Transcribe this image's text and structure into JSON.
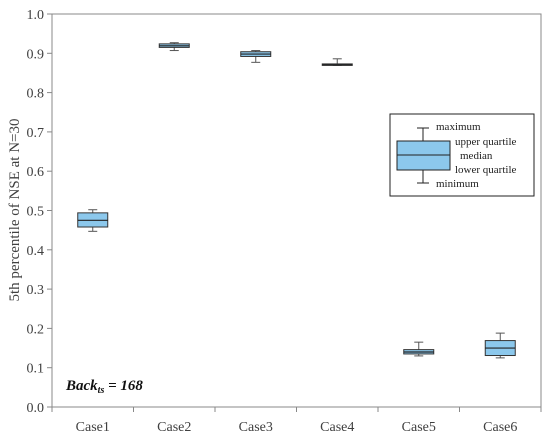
{
  "chart_data": {
    "type": "boxplot",
    "ylabel": "5th percentile of NSE at N=30",
    "ylim": [
      0.0,
      1.0
    ],
    "yticks": [
      "0.0",
      "0.1",
      "0.2",
      "0.3",
      "0.4",
      "0.5",
      "0.6",
      "0.7",
      "0.8",
      "0.9",
      "1.0"
    ],
    "categories": [
      "Case1",
      "Case2",
      "Case3",
      "Case4",
      "Case5",
      "Case6"
    ],
    "boxes": [
      {
        "min": 0.447,
        "q1": 0.458,
        "median": 0.475,
        "q3": 0.494,
        "max": 0.502
      },
      {
        "min": 0.907,
        "q1": 0.915,
        "median": 0.919,
        "q3": 0.924,
        "max": 0.927
      },
      {
        "min": 0.877,
        "q1": 0.892,
        "median": 0.898,
        "q3": 0.904,
        "max": 0.907
      },
      {
        "min": 0.869,
        "q1": 0.87,
        "median": 0.871,
        "q3": 0.873,
        "max": 0.886
      },
      {
        "min": 0.13,
        "q1": 0.135,
        "median": 0.14,
        "q3": 0.146,
        "max": 0.165
      },
      {
        "min": 0.125,
        "q1": 0.131,
        "median": 0.15,
        "q3": 0.169,
        "max": 0.188
      }
    ],
    "box_color": "#8cc8ec",
    "grid": false,
    "legend": {
      "placement": "right",
      "labels": {
        "maximum": "maximum",
        "upper_quartile": "upper quartile",
        "median": "median",
        "lower_quartile": "lower quartile",
        "minimum": "minimum"
      }
    },
    "annotation": {
      "main": "Back",
      "subscript": "ts",
      "suffix": " = 168"
    }
  }
}
